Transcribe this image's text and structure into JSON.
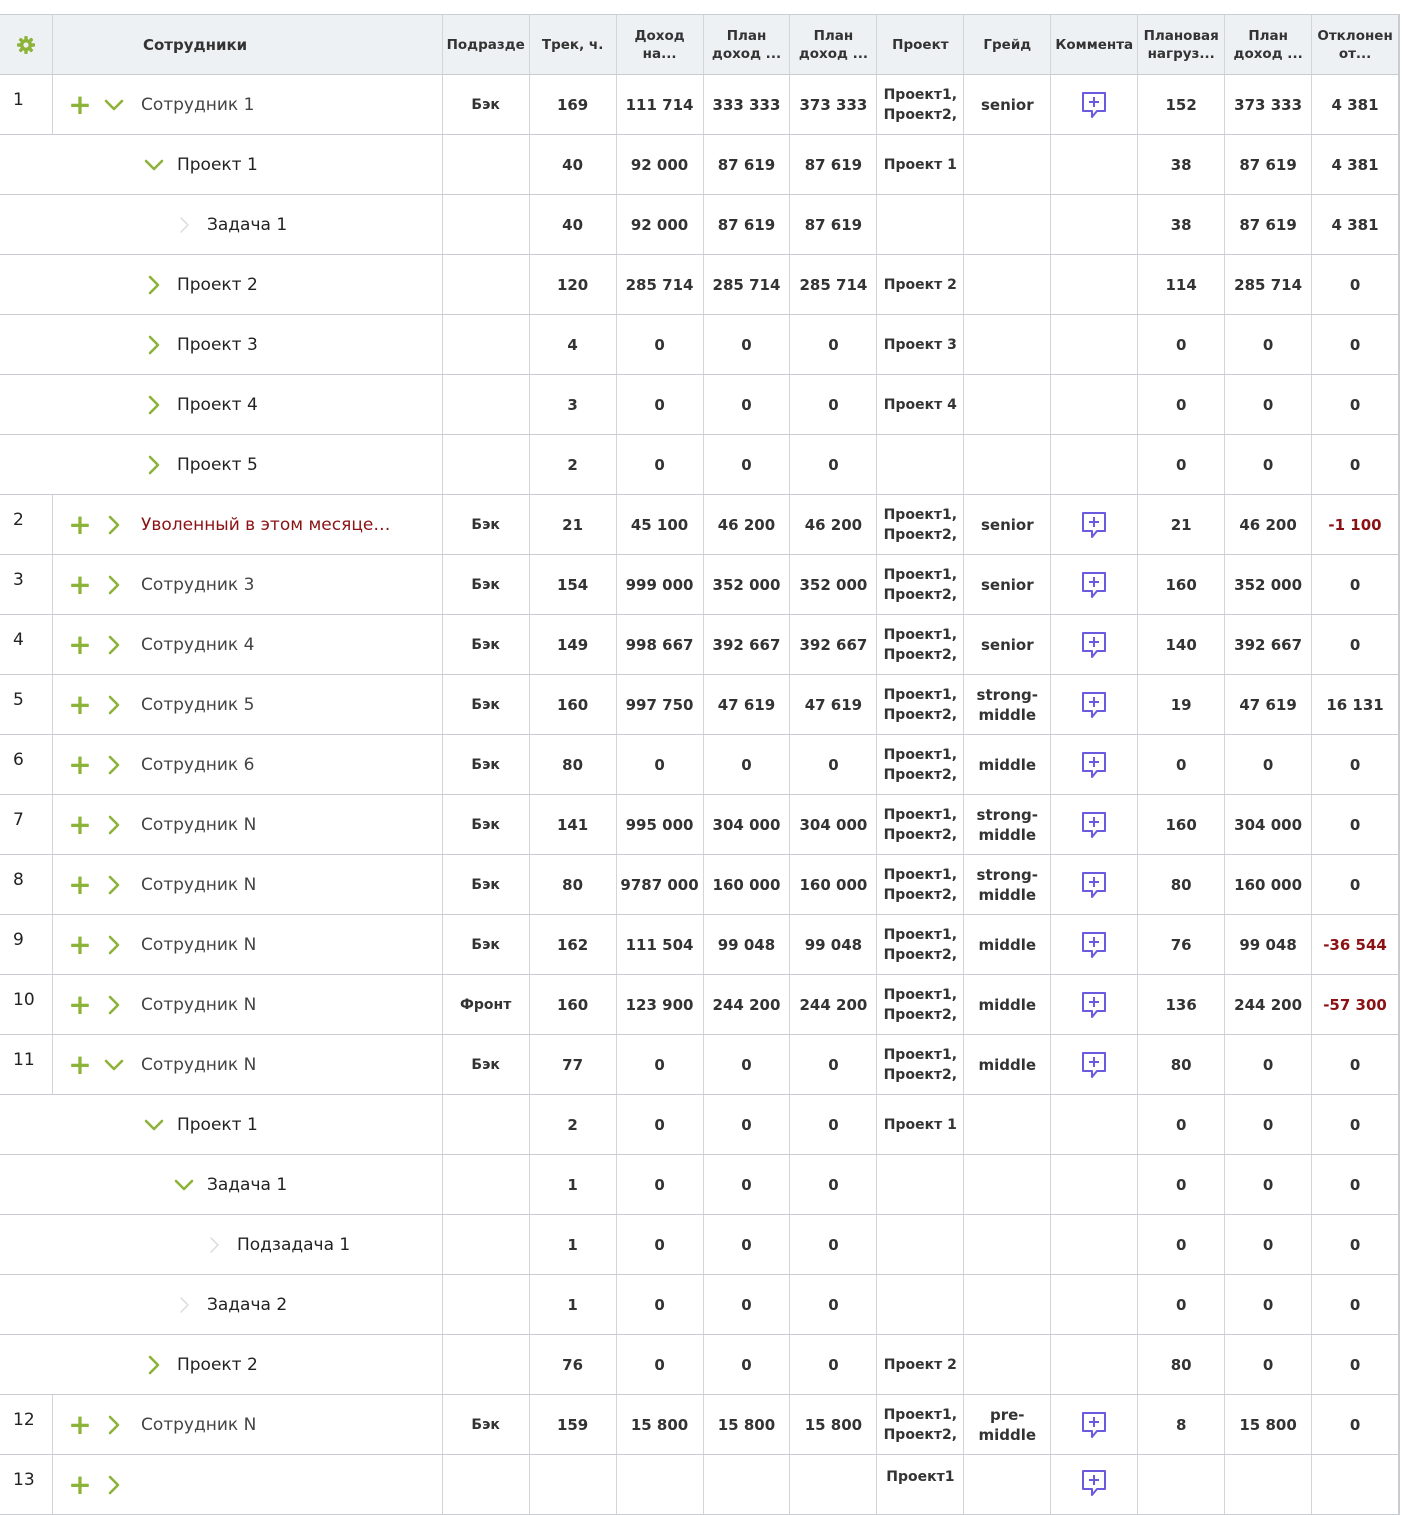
{
  "header": {
    "settings_icon": "gear-icon",
    "columns": [
      "Сотрудники",
      "Подразде",
      "Трек, ч.",
      "Доход на...",
      "План доход ...",
      "План доход ...",
      "Проект",
      "Грейд",
      "Коммента",
      "Плановая нагруз...",
      "План доход ...",
      "Отклонен от..."
    ]
  },
  "colors": {
    "accent": "#8cb33a",
    "comment": "#6a5ae0",
    "negative": "#8b1214"
  },
  "rows": [
    {
      "type": "emp",
      "n": "1",
      "name": "Сотрудник 1",
      "expanded": true,
      "dept": "Бэк",
      "track": "169",
      "income": "111 714",
      "plan1": "333 333",
      "plan2": "373 333",
      "projects": "Проект1, Проект2,",
      "grade": "senior",
      "load": "152",
      "plan3": "373 333",
      "dev": "4 381",
      "neg": false,
      "fired": false
    },
    {
      "type": "sub",
      "level": 1,
      "name": "Проект 1",
      "toggle": "open",
      "track": "40",
      "income": "92 000",
      "plan1": "87 619",
      "plan2": "87 619",
      "projects": "Проект 1",
      "load": "38",
      "plan3": "87 619",
      "dev": "4 381"
    },
    {
      "type": "sub",
      "level": 2,
      "name": "Задача 1",
      "toggle": "leaf",
      "track": "40",
      "income": "92 000",
      "plan1": "87 619",
      "plan2": "87 619",
      "projects": "",
      "load": "38",
      "plan3": "87 619",
      "dev": "4 381"
    },
    {
      "type": "sub",
      "level": 1,
      "name": "Проект 2",
      "toggle": "closed",
      "track": "120",
      "income": "285 714",
      "plan1": "285 714",
      "plan2": "285 714",
      "projects": "Проект 2",
      "load": "114",
      "plan3": "285 714",
      "dev": "0"
    },
    {
      "type": "sub",
      "level": 1,
      "name": "Проект 3",
      "toggle": "closed",
      "track": "4",
      "income": "0",
      "plan1": "0",
      "plan2": "0",
      "projects": "Проект 3",
      "load": "0",
      "plan3": "0",
      "dev": "0"
    },
    {
      "type": "sub",
      "level": 1,
      "name": "Проект 4",
      "toggle": "closed",
      "track": "3",
      "income": "0",
      "plan1": "0",
      "plan2": "0",
      "projects": "Проект 4",
      "load": "0",
      "plan3": "0",
      "dev": "0"
    },
    {
      "type": "sub",
      "level": 1,
      "name": "Проект 5",
      "toggle": "closed",
      "track": "2",
      "income": "0",
      "plan1": "0",
      "plan2": "0",
      "projects": "",
      "load": "0",
      "plan3": "0",
      "dev": "0"
    },
    {
      "type": "emp",
      "n": "2",
      "name": "Уволенный в этом месяце…",
      "expanded": false,
      "dept": "Бэк",
      "track": "21",
      "income": "45 100",
      "plan1": "46 200",
      "plan2": "46 200",
      "projects": "Проект1, Проект2,",
      "grade": "senior",
      "load": "21",
      "plan3": "46 200",
      "dev": "-1 100",
      "neg": true,
      "fired": true
    },
    {
      "type": "emp",
      "n": "3",
      "name": "Сотрудник 3",
      "expanded": false,
      "dept": "Бэк",
      "track": "154",
      "income": "999 000",
      "plan1": "352 000",
      "plan2": "352 000",
      "projects": "Проект1, Проект2,",
      "grade": "senior",
      "load": "160",
      "plan3": "352 000",
      "dev": "0",
      "neg": false,
      "fired": false
    },
    {
      "type": "emp",
      "n": "4",
      "name": "Сотрудник 4",
      "expanded": false,
      "dept": "Бэк",
      "track": "149",
      "income": "998 667",
      "plan1": "392 667",
      "plan2": "392 667",
      "projects": "Проект1, Проект2,",
      "grade": "senior",
      "load": "140",
      "plan3": "392 667",
      "dev": "0",
      "neg": false,
      "fired": false
    },
    {
      "type": "emp",
      "n": "5",
      "name": "Сотрудник 5",
      "expanded": false,
      "dept": "Бэк",
      "track": "160",
      "income": "997 750",
      "plan1": "47 619",
      "plan2": "47 619",
      "projects": "Проект1, Проект2,",
      "grade": "strong- middle",
      "load": "19",
      "plan3": "47 619",
      "dev": "16 131",
      "neg": false,
      "fired": false
    },
    {
      "type": "emp",
      "n": "6",
      "name": "Сотрудник 6",
      "expanded": false,
      "dept": "Бэк",
      "track": "80",
      "income": "0",
      "plan1": "0",
      "plan2": "0",
      "projects": "Проект1, Проект2,",
      "grade": "middle",
      "load": "0",
      "plan3": "0",
      "dev": "0",
      "neg": false,
      "fired": false
    },
    {
      "type": "emp",
      "n": "7",
      "name": "Сотрудник N",
      "expanded": false,
      "dept": "Бэк",
      "track": "141",
      "income": "995 000",
      "plan1": "304 000",
      "plan2": "304 000",
      "projects": "Проект1, Проект2,",
      "grade": "strong- middle",
      "load": "160",
      "plan3": "304 000",
      "dev": "0",
      "neg": false,
      "fired": false
    },
    {
      "type": "emp",
      "n": "8",
      "name": "Сотрудник N",
      "expanded": false,
      "dept": "Бэк",
      "track": "80",
      "income": "9787 000",
      "plan1": "160 000",
      "plan2": "160 000",
      "projects": "Проект1, Проект2,",
      "grade": "strong- middle",
      "load": "80",
      "plan3": "160 000",
      "dev": "0",
      "neg": false,
      "fired": false
    },
    {
      "type": "emp",
      "n": "9",
      "name": "Сотрудник N",
      "expanded": false,
      "dept": "Бэк",
      "track": "162",
      "income": "111 504",
      "plan1": "99 048",
      "plan2": "99 048",
      "projects": "Проект1, Проект2,",
      "grade": "middle",
      "load": "76",
      "plan3": "99 048",
      "dev": "-36 544",
      "neg": true,
      "fired": false
    },
    {
      "type": "emp",
      "n": "10",
      "name": "Сотрудник N",
      "expanded": false,
      "dept": "Фронт",
      "track": "160",
      "income": "123 900",
      "plan1": "244 200",
      "plan2": "244 200",
      "projects": "Проект1, Проект2,",
      "grade": "middle",
      "load": "136",
      "plan3": "244 200",
      "dev": "-57 300",
      "neg": true,
      "fired": false
    },
    {
      "type": "emp",
      "n": "11",
      "name": "Сотрудник N",
      "expanded": true,
      "dept": "Бэк",
      "track": "77",
      "income": "0",
      "plan1": "0",
      "plan2": "0",
      "projects": "Проект1, Проект2,",
      "grade": "middle",
      "load": "80",
      "plan3": "0",
      "dev": "0",
      "neg": false,
      "fired": false
    },
    {
      "type": "sub",
      "level": 1,
      "name": "Проект 1",
      "toggle": "open",
      "track": "2",
      "income": "0",
      "plan1": "0",
      "plan2": "0",
      "projects": "Проект 1",
      "load": "0",
      "plan3": "0",
      "dev": "0"
    },
    {
      "type": "sub",
      "level": 2,
      "name": "Задача 1",
      "toggle": "open",
      "track": "1",
      "income": "0",
      "plan1": "0",
      "plan2": "0",
      "projects": "",
      "load": "0",
      "plan3": "0",
      "dev": "0"
    },
    {
      "type": "sub",
      "level": 3,
      "name": "Подзадача 1",
      "toggle": "leaf",
      "track": "1",
      "income": "0",
      "plan1": "0",
      "plan2": "0",
      "projects": "",
      "load": "0",
      "plan3": "0",
      "dev": "0"
    },
    {
      "type": "sub",
      "level": 2,
      "name": "Задача 2",
      "toggle": "leaf",
      "track": "1",
      "income": "0",
      "plan1": "0",
      "plan2": "0",
      "projects": "",
      "load": "0",
      "plan3": "0",
      "dev": "0"
    },
    {
      "type": "sub",
      "level": 1,
      "name": "Проект 2",
      "toggle": "closed",
      "track": "76",
      "income": "0",
      "plan1": "0",
      "plan2": "0",
      "projects": "Проект 2",
      "load": "80",
      "plan3": "0",
      "dev": "0"
    },
    {
      "type": "emp",
      "n": "12",
      "name": "Сотрудник N",
      "expanded": false,
      "dept": "Бэк",
      "track": "159",
      "income": "15 800",
      "plan1": "15 800",
      "plan2": "15 800",
      "projects": "Проект1, Проект2,",
      "grade": "pre- middle",
      "load": "8",
      "plan3": "15 800",
      "dev": "0",
      "neg": false,
      "fired": false
    },
    {
      "type": "emp",
      "n": "13",
      "name": "",
      "expanded": false,
      "dept": "",
      "track": "",
      "income": "",
      "plan1": "",
      "plan2": "",
      "projects": "Проект1",
      "grade": "",
      "load": "",
      "plan3": "",
      "dev": "",
      "neg": false,
      "fired": false,
      "partial": true
    }
  ]
}
